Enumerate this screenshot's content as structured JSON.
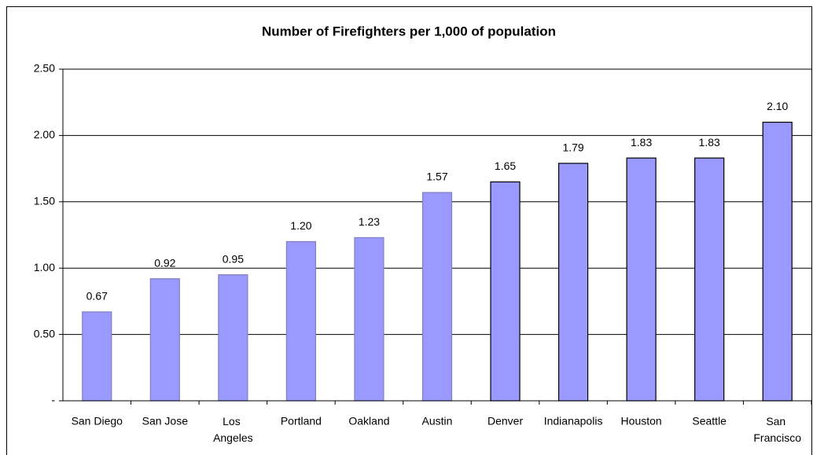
{
  "chart_data": {
    "type": "bar",
    "title": "Number of Firefighters per 1,000 of population",
    "categories": [
      "San Diego",
      "San Jose",
      "Los Angeles",
      "Portland",
      "Oakland",
      "Austin",
      "Denver",
      "Indianapolis",
      "Houston",
      "Seattle",
      "San Francisco"
    ],
    "values": [
      0.67,
      0.92,
      0.95,
      1.2,
      1.23,
      1.57,
      1.65,
      1.79,
      1.83,
      1.83,
      2.1
    ],
    "value_labels": [
      "0.67",
      "0.92",
      "0.95",
      "1.20",
      "1.23",
      "1.57",
      "1.65",
      "1.79",
      "1.83",
      "1.83",
      "2.10"
    ],
    "color": "#9999ff",
    "edgecolors": [
      "#8080c0",
      "#8080c0",
      "#8080c0",
      "#8080c0",
      "#8080c0",
      "#8080c0",
      "#000000",
      "#000000",
      "#000000",
      "#000000",
      "#000000"
    ],
    "ylim": [
      0,
      2.5
    ],
    "yticks": [
      {
        "value": 0,
        "label": "-"
      },
      {
        "value": 0.5,
        "label": "0.50"
      },
      {
        "value": 1,
        "label": "1.00"
      },
      {
        "value": 1.5,
        "label": "1.50"
      },
      {
        "value": 2,
        "label": "2.00"
      },
      {
        "value": 2.5,
        "label": "2.50"
      }
    ],
    "grid": true
  }
}
